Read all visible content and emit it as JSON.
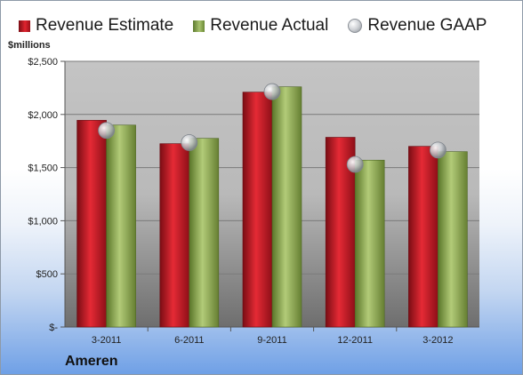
{
  "chart_data": {
    "type": "bar",
    "categories": [
      "3-2011",
      "6-2011",
      "9-2011",
      "12-2011",
      "3-2012"
    ],
    "series": [
      {
        "name": "Revenue Estimate",
        "kind": "bar",
        "color": "#c8202a",
        "values": [
          1945,
          1725,
          2210,
          1785,
          1700
        ]
      },
      {
        "name": "Revenue Actual",
        "kind": "bar",
        "color": "#8aab52",
        "values": [
          1900,
          1775,
          2260,
          1570,
          1650
        ]
      },
      {
        "name": "Revenue GAAP",
        "kind": "marker",
        "color": "#b8bcc2",
        "values": [
          1850,
          1735,
          2215,
          1530,
          1665
        ]
      }
    ],
    "ylabel": "$millions",
    "ylim": [
      0,
      2500
    ],
    "yticks": [
      0,
      500,
      1000,
      1500,
      2000,
      2500
    ],
    "ytick_labels": [
      "$-",
      "$500",
      "$1,000",
      "$1,500",
      "$2,000",
      "$2,500"
    ],
    "grid": true,
    "legend_position": "top",
    "caption": "Ameren"
  }
}
